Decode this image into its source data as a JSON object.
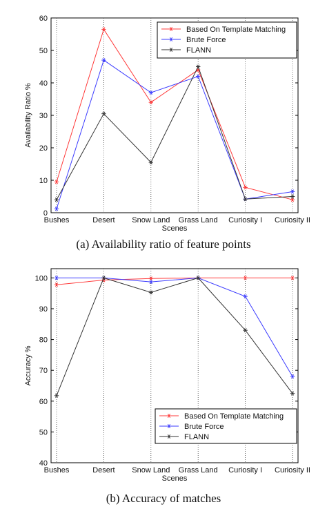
{
  "chart_data": [
    {
      "type": "line",
      "caption": "(a)  Availability ratio of feature points",
      "xlabel": "Scenes",
      "ylabel": "Availability Ratio %",
      "categories": [
        "Bushes",
        "Desert",
        "Snow Land",
        "Grass Land",
        "Curiosity I",
        "Curiosity II"
      ],
      "ylim": [
        0,
        60
      ],
      "yticks": [
        0,
        10,
        20,
        30,
        40,
        50,
        60
      ],
      "grid": "vertical",
      "legend_position": "top-right",
      "series": [
        {
          "name": "Based On Template Matching",
          "color": "#ff3b3b",
          "values": [
            9.5,
            56.5,
            34,
            44,
            7.8,
            4
          ]
        },
        {
          "name": "Brute Force",
          "color": "#3b3bff",
          "values": [
            1.2,
            47,
            37,
            42,
            4.2,
            6.5
          ]
        },
        {
          "name": "FLANN",
          "color": "#333333",
          "values": [
            4,
            30.5,
            15.5,
            45,
            4.2,
            5
          ]
        }
      ]
    },
    {
      "type": "line",
      "caption": "(b) Accuracy of matches",
      "xlabel": "Scenes",
      "ylabel": "Accuracy %",
      "categories": [
        "Bushes",
        "Desert",
        "Snow Land",
        "Grass Land",
        "Curiosity I",
        "Curiosity II"
      ],
      "ylim": [
        40,
        103
      ],
      "yticks": [
        40,
        50,
        60,
        70,
        80,
        90,
        100
      ],
      "grid": "vertical",
      "legend_position": "lower-right",
      "series": [
        {
          "name": "Based On Template Matching",
          "color": "#ff3b3b",
          "values": [
            97.8,
            99.3,
            99.8,
            100,
            100,
            100
          ]
        },
        {
          "name": "Brute Force",
          "color": "#3b3bff",
          "values": [
            100,
            100,
            98.7,
            100,
            94,
            68
          ]
        },
        {
          "name": "FLANN",
          "color": "#333333",
          "values": [
            61.8,
            100,
            95.3,
            100,
            83,
            62.5
          ]
        }
      ]
    }
  ]
}
